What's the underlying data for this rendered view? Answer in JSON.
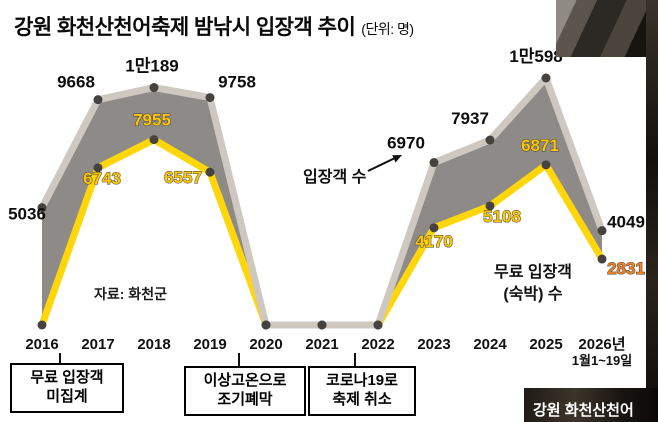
{
  "title": {
    "text": "강원 화천산천어축제 밤낚시 입장객 추이",
    "unit": "(단위: 명)"
  },
  "source": "자료: 화천군",
  "series_labels": {
    "total": "입장객 수",
    "free_line1": "무료 입장객",
    "free_line2": "(숙박) 수"
  },
  "watermark": "강원 화천산천어",
  "annotations": [
    {
      "line1": "무료 입장객",
      "line2": "미집계"
    },
    {
      "line1": "이상고온으로",
      "line2": "조기폐막"
    },
    {
      "line1": "코로나19로",
      "line2": "축제 취소"
    }
  ],
  "chart_data": {
    "type": "line",
    "title": "강원 화천산천어축제 밤낚시 입장객 추이",
    "unit": "명",
    "categories": [
      "2016",
      "2017",
      "2018",
      "2019",
      "2020",
      "2021",
      "2022",
      "2023",
      "2024",
      "2025",
      "2026년\n1월1~19일"
    ],
    "series": [
      {
        "name": "입장객 수",
        "values": [
          5036,
          9668,
          10189,
          9758,
          0,
          0,
          0,
          6970,
          7937,
          10598,
          4049
        ],
        "labels": [
          "5036",
          "9668",
          "1만189",
          "9758",
          "",
          "",
          "",
          "6970",
          "7937",
          "1만598",
          "4049"
        ]
      },
      {
        "name": "무료 입장객(숙박) 수",
        "values": [
          0,
          6743,
          7955,
          6557,
          0,
          0,
          0,
          4170,
          5108,
          6871,
          2831
        ],
        "labels": [
          "",
          "6743",
          "7955",
          "6557",
          "",
          "",
          "",
          "4170",
          "5108",
          "6871",
          "2831"
        ]
      }
    ],
    "ylim": [
      0,
      10598
    ],
    "legend_position": "inline-annotations",
    "grid": false,
    "colors": {
      "band": "#8d8a87",
      "total_line": "#cfc8c1",
      "free_line": "#ffd60a",
      "marker": "#45423f",
      "total_label": "#0d0d0d",
      "free_label": "#ffc800",
      "free_label_stroke": "#3d3d3d",
      "latest_free_label": "#f58220",
      "axis_label": "#111111"
    },
    "label_offsets": {
      "total": [
        [
          -15,
          12
        ],
        [
          -22,
          -12
        ],
        [
          -2,
          -16
        ],
        [
          27,
          -10
        ],
        null,
        null,
        null,
        [
          -28,
          -14
        ],
        [
          -20,
          -16
        ],
        [
          -10,
          -16
        ],
        [
          24,
          -3
        ]
      ],
      "free": [
        null,
        [
          4,
          16
        ],
        [
          -2,
          -14
        ],
        [
          -27,
          11
        ],
        null,
        null,
        null,
        [
          0,
          19
        ],
        [
          12,
          16
        ],
        [
          -6,
          -14
        ],
        [
          24,
          15
        ]
      ]
    }
  }
}
